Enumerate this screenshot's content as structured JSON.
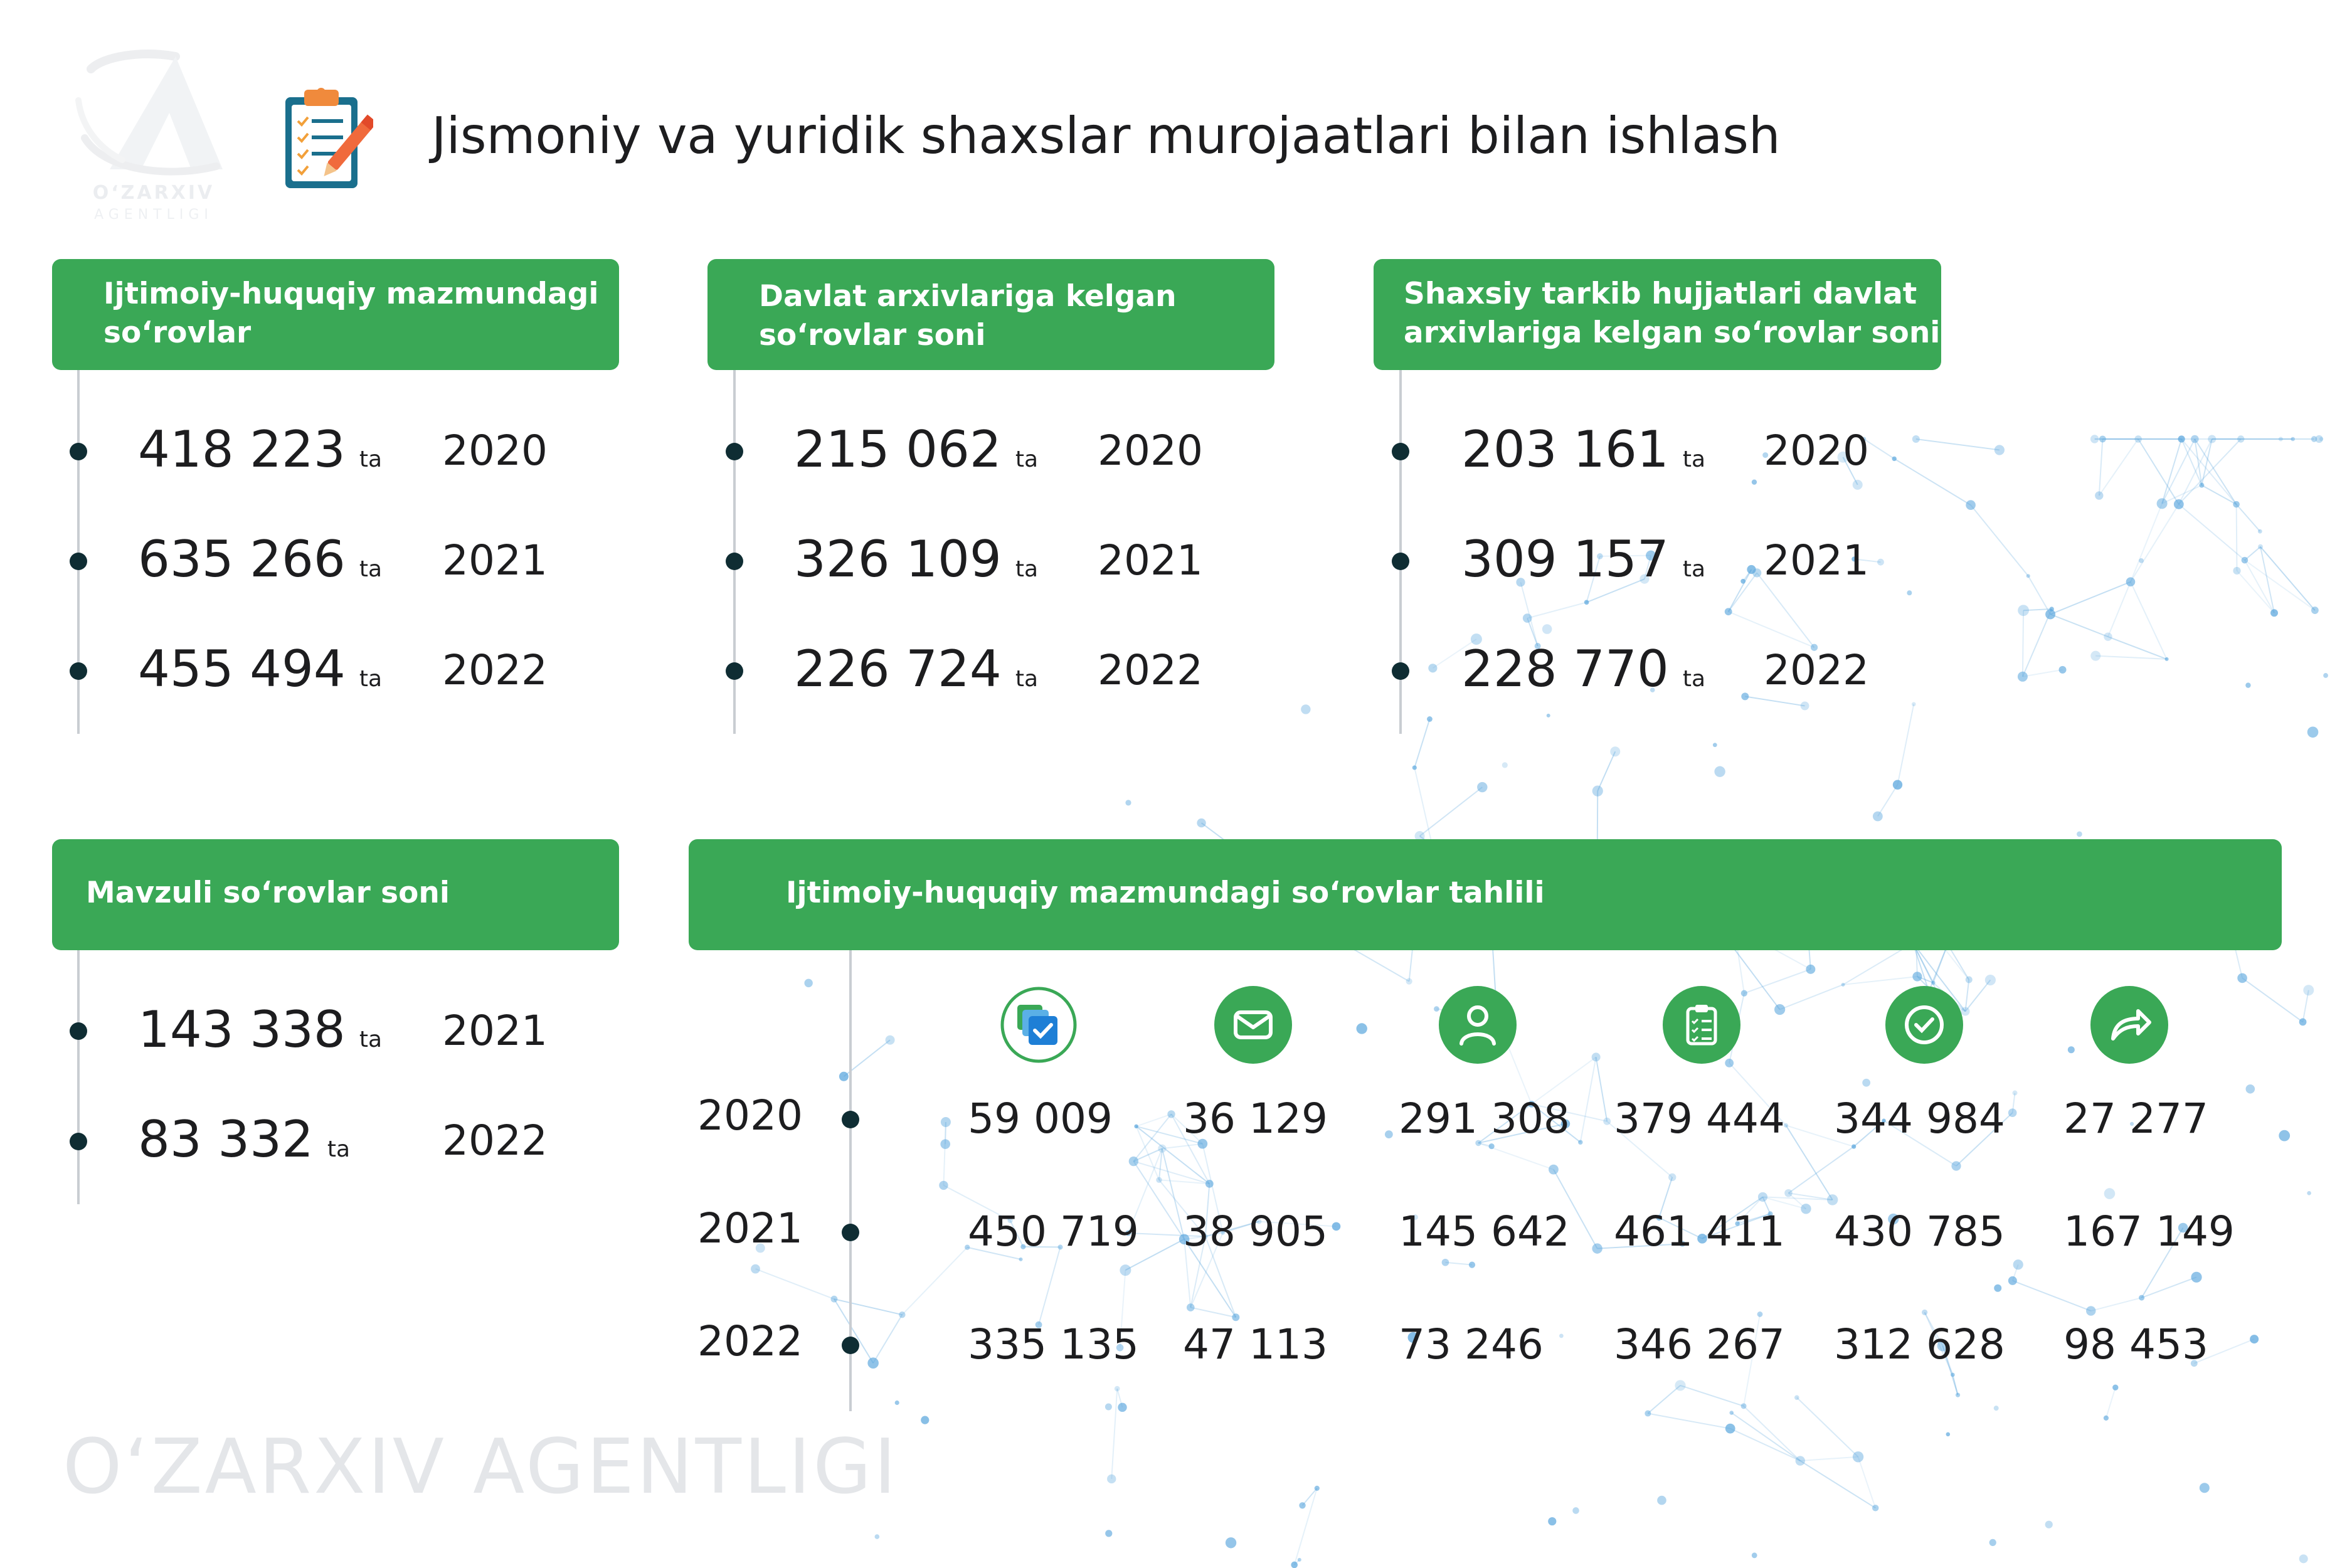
{
  "title": "Jismoniy va yuridik shaxslar murojaatlari bilan ishlash",
  "logo": {
    "name": "O‘ZARXIV",
    "subtitle": "AGENTLIGI"
  },
  "watermark": "O‘ZARXIV AGENTLIGI",
  "unit": "ta",
  "accent_color": "#3aa856",
  "dot_color": "#0f2d33",
  "network_color": "#5aa6dd",
  "sections": [
    {
      "header_line1": "Ijtimoiy-huquqiy mazmundagi",
      "header_line2": "so‘rovlar",
      "items": [
        {
          "value": "418 223",
          "unit": "ta",
          "year": "2020"
        },
        {
          "value": "635 266",
          "unit": "ta",
          "year": "2021"
        },
        {
          "value": "455 494",
          "unit": "ta",
          "year": "2022"
        }
      ]
    },
    {
      "header_line1": "Davlat arxivlariga kelgan",
      "header_line2": "so‘rovlar soni",
      "items": [
        {
          "value": "215 062",
          "unit": "ta",
          "year": "2020"
        },
        {
          "value": "326 109",
          "unit": "ta",
          "year": "2021"
        },
        {
          "value": "226 724",
          "unit": "ta",
          "year": "2022"
        }
      ]
    },
    {
      "header_line1": "Shaxsiy tarkib hujjatlari davlat",
      "header_line2": "arxivlariga kelgan so‘rovlar soni",
      "items": [
        {
          "value": "203 161",
          "unit": "ta",
          "year": "2020"
        },
        {
          "value": "309 157",
          "unit": "ta",
          "year": "2021"
        },
        {
          "value": "228 770",
          "unit": "ta",
          "year": "2022"
        }
      ]
    },
    {
      "header_line1": "Mavzuli so‘rovlar soni",
      "header_line2": "",
      "items": [
        {
          "value": "143 338",
          "unit": "ta",
          "year": "2021"
        },
        {
          "value": "83 332",
          "unit": "ta",
          "year": "2022"
        }
      ]
    }
  ],
  "analysis": {
    "header": "Ijtimoiy-huquqiy mazmundagi so‘rovlar tahlili",
    "icons": [
      "checked-documents-icon",
      "envelope-icon",
      "person-icon",
      "clipboard-list-icon",
      "check-circle-icon",
      "share-arrow-icon"
    ],
    "rows": [
      {
        "year": "2020",
        "values": [
          "59 009",
          "36 129",
          "291 308",
          "379 444",
          "344 984",
          "27 277"
        ]
      },
      {
        "year": "2021",
        "values": [
          "450 719",
          "38 905",
          "145 642",
          "461 411",
          "430 785",
          "167 149"
        ]
      },
      {
        "year": "2022",
        "values": [
          "335 135",
          "47 113",
          "73 246",
          "346 267",
          "312 628",
          "98 453"
        ]
      }
    ]
  }
}
